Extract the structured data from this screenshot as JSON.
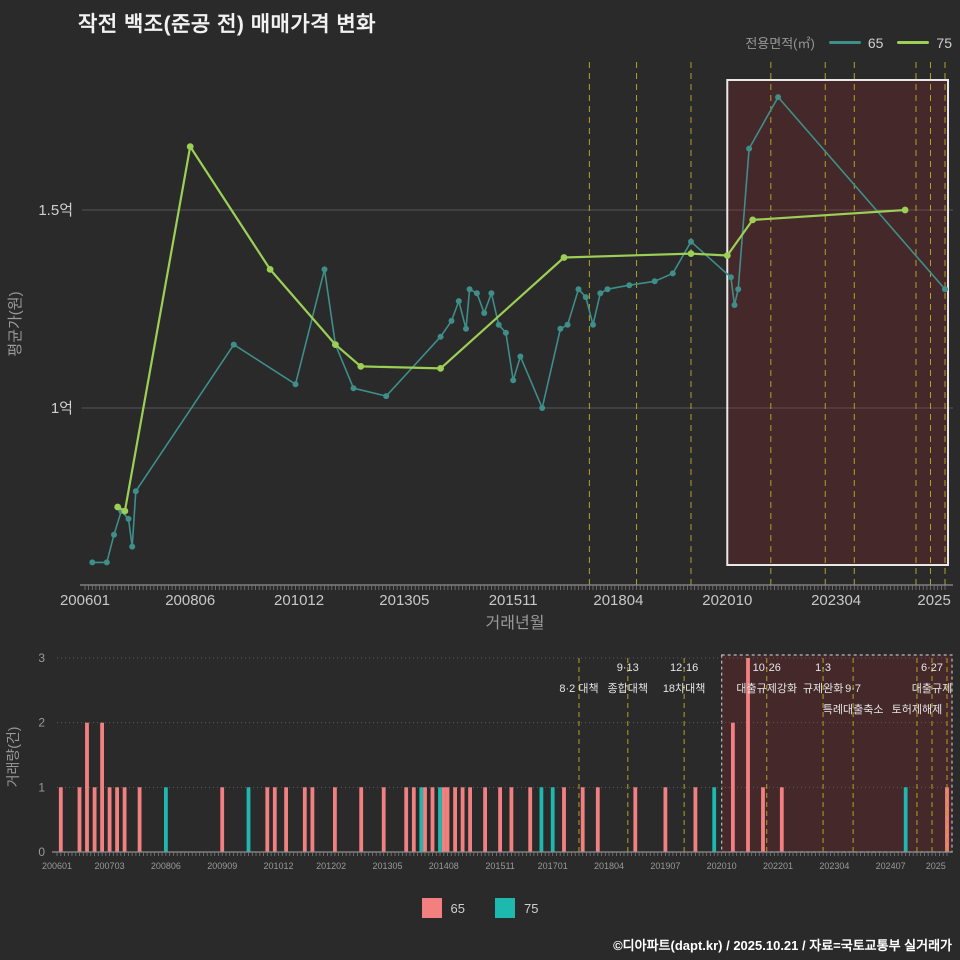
{
  "page": {
    "title": "작전 백조(준공 전) 매매가격 변화",
    "footer": "©디아파트(dapt.kr) / 2025.10.21 / 자료=국토교통부 실거래가",
    "background": "#2a2a2b"
  },
  "legend_top": {
    "label": "전용면적(㎡)",
    "items": [
      {
        "name": "65",
        "color": "#3e8e89"
      },
      {
        "name": "75",
        "color": "#9ccf55"
      }
    ]
  },
  "legend_bottom": {
    "items": [
      {
        "name": "65",
        "color": "#f38080"
      },
      {
        "name": "75",
        "color": "#1db8ae"
      }
    ]
  },
  "chart_data": [
    {
      "type": "line",
      "title": "작전 백조(준공 전) 매매가격 변화",
      "xlabel": "거래년월",
      "ylabel": "평균가(원)",
      "unit": "억원",
      "x_range": [
        "200601",
        "202510"
      ],
      "ylim": [
        0.55,
        1.87
      ],
      "y_ticks": [
        {
          "label": "1억",
          "value": 1.0
        },
        {
          "label": "1.5억",
          "value": 1.5
        }
      ],
      "x_ticks": [
        "200601",
        "200806",
        "201012",
        "201305",
        "201511",
        "201804",
        "202010",
        "202304",
        "2025"
      ],
      "event_lines": {
        "color": "#b3a125",
        "dates": [
          "201708",
          "201809",
          "201912",
          "202110",
          "202301",
          "202309",
          "202502",
          "202506",
          "202510"
        ]
      },
      "highlight": {
        "from": "202010",
        "to": "202510",
        "fill": "rgba(150,35,35,0.25)",
        "border": "#e8e8e8"
      },
      "series": [
        {
          "name": "65",
          "color": "#3e8e89",
          "points": [
            [
              "200603",
              0.61
            ],
            [
              "200607",
              0.61
            ],
            [
              "200609",
              0.68
            ],
            [
              "200611",
              0.74
            ],
            [
              "200701",
              0.72
            ],
            [
              "200702",
              0.65
            ],
            [
              "200703",
              0.79
            ],
            [
              "200906",
              1.16
            ],
            [
              "201011",
              1.06
            ],
            [
              "201107",
              1.35
            ],
            [
              "201110",
              1.16
            ],
            [
              "201203",
              1.05
            ],
            [
              "201212",
              1.03
            ],
            [
              "201403",
              1.18
            ],
            [
              "201406",
              1.22
            ],
            [
              "201408",
              1.27
            ],
            [
              "201410",
              1.2
            ],
            [
              "201411",
              1.3
            ],
            [
              "201501",
              1.29
            ],
            [
              "201503",
              1.24
            ],
            [
              "201505",
              1.29
            ],
            [
              "201507",
              1.21
            ],
            [
              "201509",
              1.19
            ],
            [
              "201511",
              1.07
            ],
            [
              "201601",
              1.13
            ],
            [
              "201607",
              1.0
            ],
            [
              "201612",
              1.2
            ],
            [
              "201702",
              1.21
            ],
            [
              "201705",
              1.3
            ],
            [
              "201707",
              1.28
            ],
            [
              "201709",
              1.21
            ],
            [
              "201711",
              1.29
            ],
            [
              "201801",
              1.3
            ],
            [
              "201807",
              1.31
            ],
            [
              "201902",
              1.32
            ],
            [
              "201907",
              1.34
            ],
            [
              "201912",
              1.42
            ],
            [
              "202011",
              1.33
            ],
            [
              "202012",
              1.26
            ],
            [
              "202101",
              1.3
            ],
            [
              "202104",
              1.655
            ],
            [
              "202112",
              1.785
            ],
            [
              "202510",
              1.3
            ]
          ]
        },
        {
          "name": "75",
          "color": "#9ccf55",
          "points": [
            [
              "200610",
              0.75
            ],
            [
              "200612",
              0.74
            ],
            [
              "200806",
              1.66
            ],
            [
              "201004",
              1.35
            ],
            [
              "201110",
              1.16
            ],
            [
              "201205",
              1.105
            ],
            [
              "201403",
              1.1
            ],
            [
              "201701",
              1.38
            ],
            [
              "201912",
              1.39
            ],
            [
              "202010",
              1.385
            ],
            [
              "202105",
              1.475
            ],
            [
              "202411",
              1.5
            ]
          ]
        }
      ]
    },
    {
      "type": "bar",
      "ylabel": "거래량(건)",
      "y_ticks": [
        0,
        1,
        2,
        3
      ],
      "x_ticks": [
        "200601",
        "200703",
        "200806",
        "200909",
        "201012",
        "201202",
        "201305",
        "201408",
        "201511",
        "201701",
        "201804",
        "201907",
        "202010",
        "202201",
        "202304",
        "202407",
        "2025"
      ],
      "series_colors": {
        "65": "#f38080",
        "75": "#1db8ae"
      },
      "highlight": {
        "from": "202010",
        "to": "202510",
        "fill": "rgba(150,35,35,0.25)",
        "border": "#bbbbbb"
      },
      "bars": [
        {
          "month": "200602",
          "size": "65",
          "count": 1
        },
        {
          "month": "200607",
          "size": "65",
          "count": 1
        },
        {
          "month": "200609",
          "size": "65",
          "count": 2
        },
        {
          "month": "200611",
          "size": "65",
          "count": 1
        },
        {
          "month": "200701",
          "size": "65",
          "count": 2
        },
        {
          "month": "200703",
          "size": "65",
          "count": 1
        },
        {
          "month": "200705",
          "size": "65",
          "count": 1
        },
        {
          "month": "200707",
          "size": "65",
          "count": 1
        },
        {
          "month": "200711",
          "size": "65",
          "count": 1
        },
        {
          "month": "200806",
          "size": "75",
          "count": 1
        },
        {
          "month": "200909",
          "size": "65",
          "count": 1
        },
        {
          "month": "201004",
          "size": "75",
          "count": 1
        },
        {
          "month": "201009",
          "size": "65",
          "count": 1
        },
        {
          "month": "201011",
          "size": "65",
          "count": 1
        },
        {
          "month": "201102",
          "size": "65",
          "count": 1
        },
        {
          "month": "201107",
          "size": "65",
          "count": 1
        },
        {
          "month": "201109",
          "size": "65",
          "count": 1
        },
        {
          "month": "201203",
          "size": "65",
          "count": 1
        },
        {
          "month": "201210",
          "size": "65",
          "count": 1
        },
        {
          "month": "201304",
          "size": "65",
          "count": 1
        },
        {
          "month": "201310",
          "size": "65",
          "count": 1
        },
        {
          "month": "201312",
          "size": "65",
          "count": 1
        },
        {
          "month": "201402",
          "size": "75",
          "count": 1
        },
        {
          "month": "201403",
          "size": "65",
          "count": 1
        },
        {
          "month": "201405",
          "size": "65",
          "count": 1
        },
        {
          "month": "201407",
          "size": "75",
          "count": 1
        },
        {
          "month": "201408",
          "size": "65",
          "count": 1
        },
        {
          "month": "201409",
          "size": "65",
          "count": 1
        },
        {
          "month": "201411",
          "size": "65",
          "count": 1
        },
        {
          "month": "201501",
          "size": "65",
          "count": 1
        },
        {
          "month": "201503",
          "size": "65",
          "count": 1
        },
        {
          "month": "201507",
          "size": "65",
          "count": 1
        },
        {
          "month": "201511",
          "size": "65",
          "count": 1
        },
        {
          "month": "201602",
          "size": "65",
          "count": 1
        },
        {
          "month": "201607",
          "size": "65",
          "count": 1
        },
        {
          "month": "201610",
          "size": "75",
          "count": 1
        },
        {
          "month": "201701",
          "size": "75",
          "count": 1
        },
        {
          "month": "201704",
          "size": "65",
          "count": 1
        },
        {
          "month": "201709",
          "size": "65",
          "count": 1
        },
        {
          "month": "201801",
          "size": "65",
          "count": 1
        },
        {
          "month": "201811",
          "size": "65",
          "count": 1
        },
        {
          "month": "201907",
          "size": "65",
          "count": 1
        },
        {
          "month": "202003",
          "size": "65",
          "count": 1
        },
        {
          "month": "202008",
          "size": "75",
          "count": 1
        },
        {
          "month": "202101",
          "size": "65",
          "count": 2
        },
        {
          "month": "202105",
          "size": "65",
          "count": 3
        },
        {
          "month": "202109",
          "size": "65",
          "count": 1
        },
        {
          "month": "202202",
          "size": "65",
          "count": 1
        },
        {
          "month": "202411",
          "size": "75",
          "count": 1
        },
        {
          "month": "202510",
          "size": "65",
          "count": 1
        }
      ],
      "annotations": [
        {
          "date": "201708",
          "rows": [
            "",
            "8·2 대책"
          ]
        },
        {
          "date": "201809",
          "rows": [
            "9·13",
            "종합대책"
          ]
        },
        {
          "date": "201912",
          "rows": [
            "12·16",
            "18차대책"
          ]
        },
        {
          "date": "202110",
          "rows": [
            "10·26",
            "대출규제강화"
          ]
        },
        {
          "date": "202301",
          "rows": [
            "1·3",
            "규제완화"
          ]
        },
        {
          "date": "202309",
          "rows": [
            "",
            "9·7",
            "특례대출축소"
          ]
        },
        {
          "date": "202502",
          "rows": [
            "",
            "",
            "토허제해제"
          ]
        },
        {
          "date": "202506",
          "rows": [
            "6·27",
            "대출규제"
          ]
        },
        {
          "date": "202510",
          "rows": []
        }
      ]
    }
  ]
}
